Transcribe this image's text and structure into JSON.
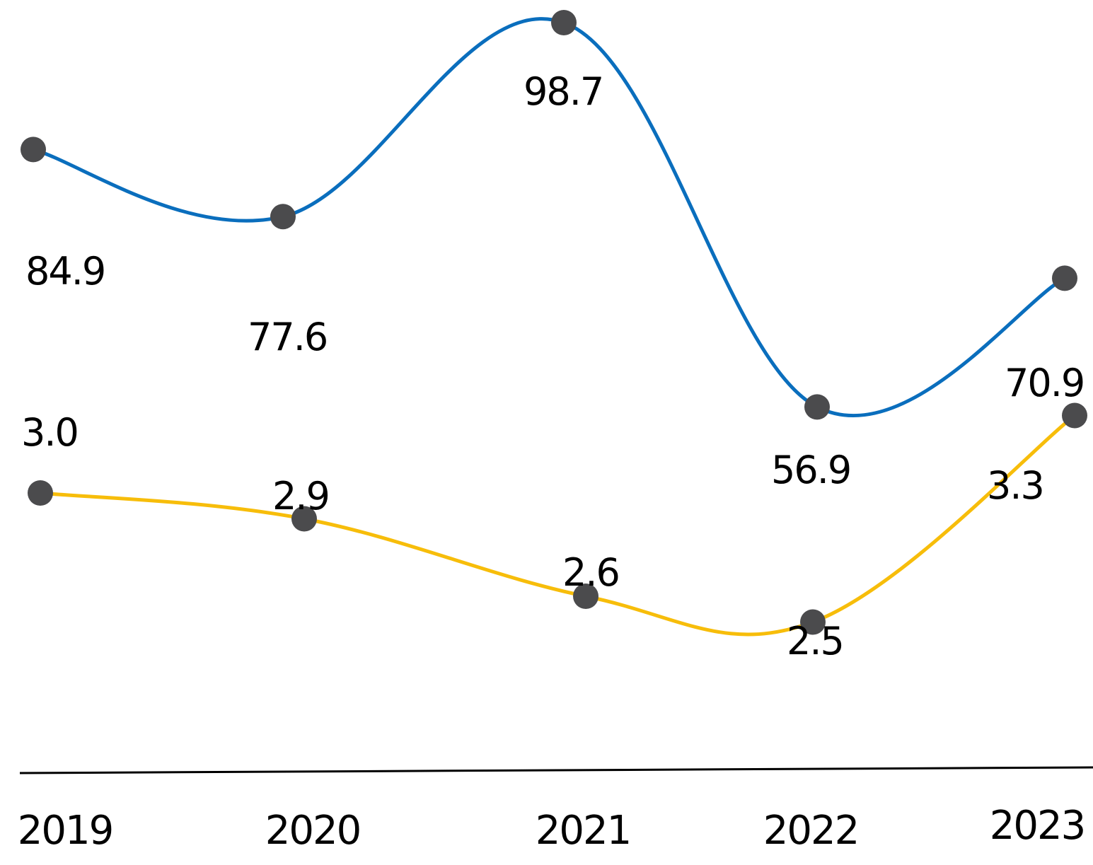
{
  "chart_data": {
    "type": "line",
    "categories": [
      "2019",
      "2020",
      "2021",
      "2022",
      "2023"
    ],
    "series": [
      {
        "values": [
          84.9,
          77.6,
          98.7,
          56.9,
          70.9
        ],
        "color": "#0a6ebd",
        "smooth": true,
        "labels_position": "below"
      },
      {
        "values": [
          3.0,
          2.9,
          2.6,
          2.5,
          3.3
        ],
        "color": "#f7bd0a",
        "smooth": true,
        "labels_position": "above"
      }
    ],
    "marker_color": "#4b4b4d",
    "axis_color": "#000000",
    "title": "",
    "xlabel": "",
    "ylabel": "",
    "grid": false,
    "legend": "none"
  },
  "labels": {
    "series_0": [
      "84.9",
      "77.6",
      "98.7",
      "56.9",
      "70.9"
    ],
    "series_1": [
      "3.0",
      "2.9",
      "2.6",
      "2.5",
      "3.3"
    ]
  }
}
